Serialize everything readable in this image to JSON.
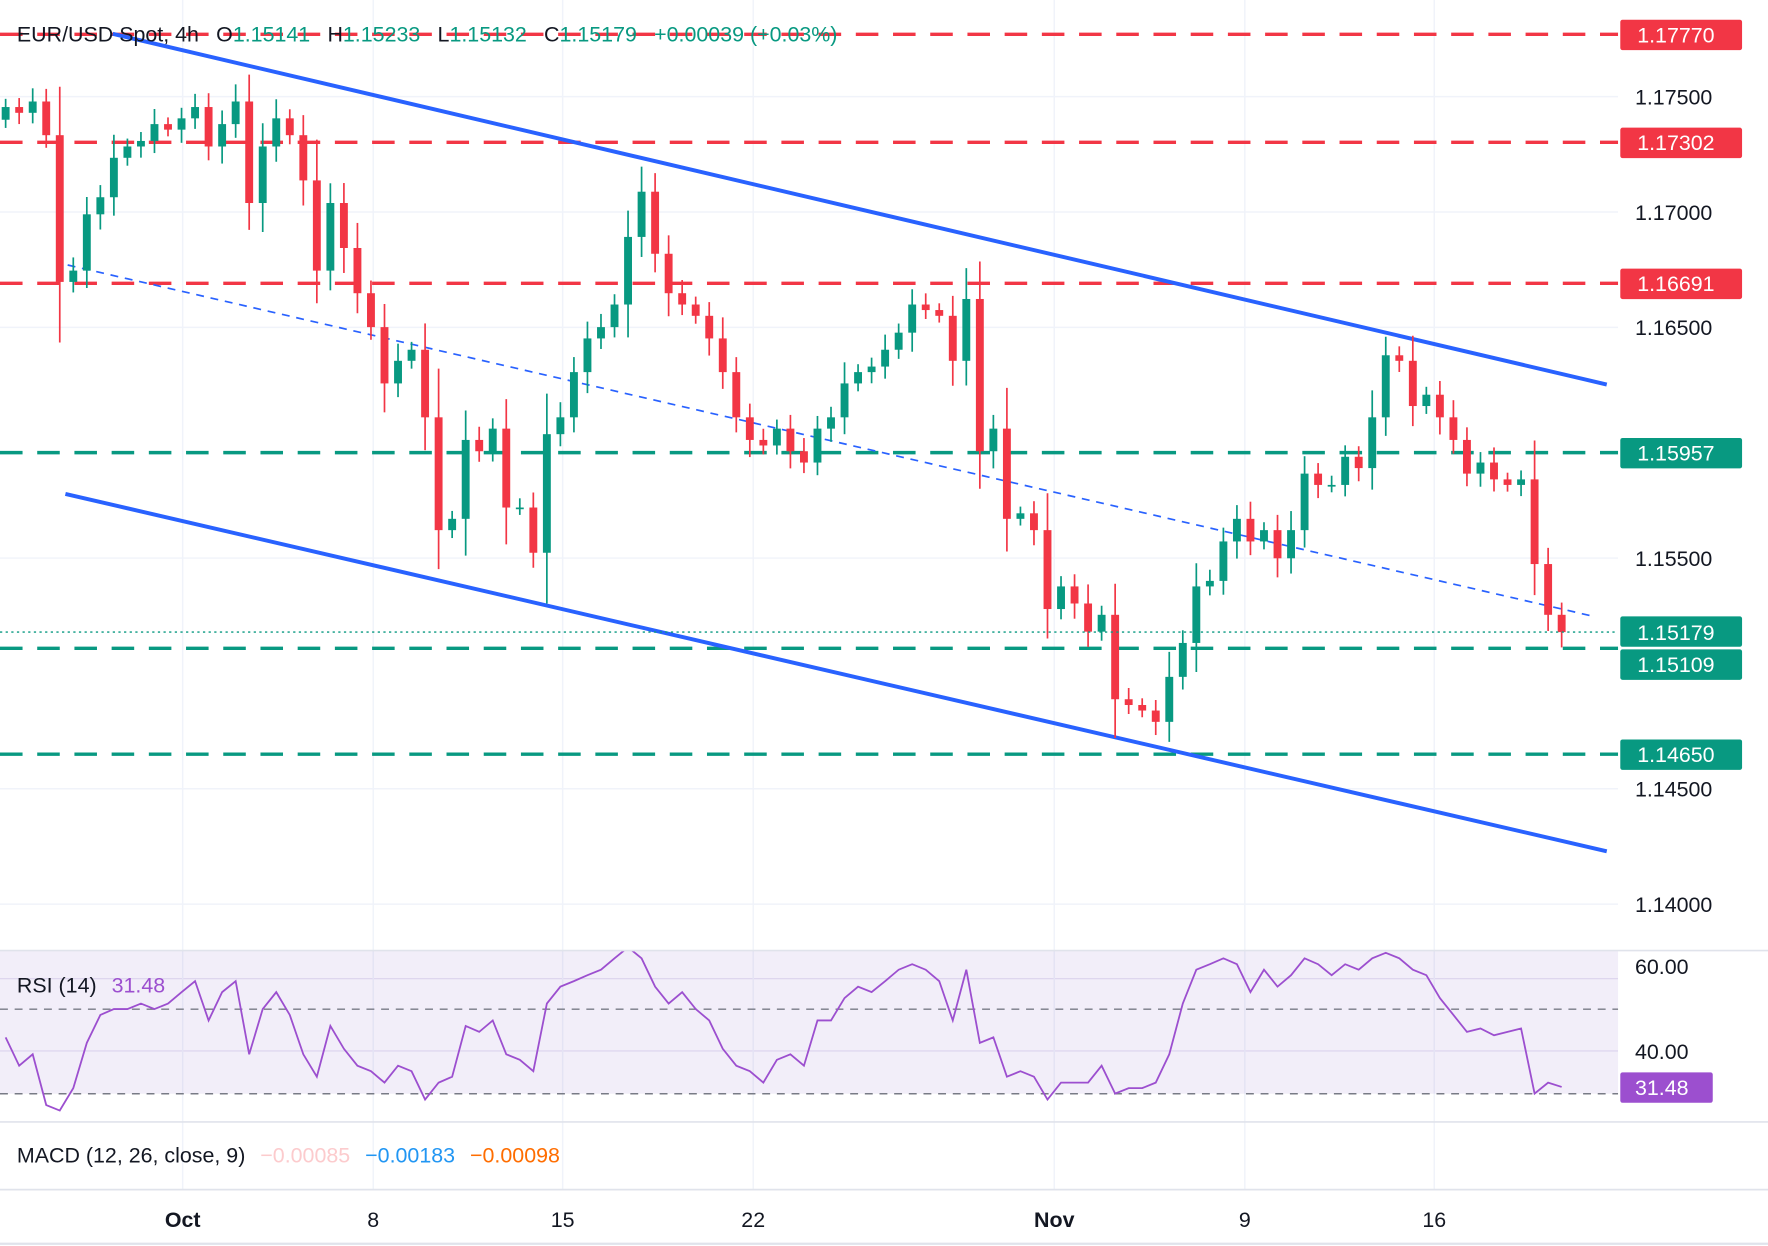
{
  "header": {
    "symbol": "EUR/USD Spot, 4h",
    "o_label": "O",
    "o_value": "1.15141",
    "h_label": "H",
    "h_value": "1.15233",
    "l_label": "L",
    "l_value": "1.15132",
    "c_label": "C",
    "c_value": "1.15179",
    "change": "+0.00039 (+0.03%)"
  },
  "colors": {
    "up": "#089981",
    "down": "#f23645",
    "trendline": "#2962ff",
    "rsi": "#9c4fcf",
    "macd_hist": "#fccbcd",
    "macd": "#2196f3",
    "signal": "#ff6d00"
  },
  "chart_data": [
    {
      "type": "candlestick",
      "title": "EUR/USD Spot, 4h",
      "ylim": [
        1.138,
        1.179
      ],
      "y_ticks": [
        "1.17500",
        "1.17000",
        "1.16500",
        "1.15500",
        "1.14500",
        "1.14000"
      ],
      "y_tick_values": [
        1.175,
        1.17,
        1.165,
        1.155,
        1.145,
        1.14
      ],
      "x_tick_labels": [
        "Oct",
        "8",
        "15",
        "22",
        "Nov",
        "9",
        "16"
      ],
      "grid": true,
      "first_open": 1.174,
      "closes": [
        1.17455,
        1.1743,
        1.17479,
        1.17333,
        1.16697,
        1.16746,
        1.1699,
        1.17064,
        1.17235,
        1.17284,
        1.17308,
        1.17381,
        1.17357,
        1.17406,
        1.17455,
        1.17284,
        1.17381,
        1.17479,
        1.17039,
        1.17284,
        1.17406,
        1.17333,
        1.17137,
        1.16746,
        1.17039,
        1.16844,
        1.16648,
        1.16501,
        1.16257,
        1.16355,
        1.16403,
        1.1611,
        1.15621,
        1.1567,
        1.16012,
        1.15963,
        1.16061,
        1.15719,
        1.15719,
        1.15523,
        1.16037,
        1.1611,
        1.16306,
        1.16452,
        1.16501,
        1.16599,
        1.16892,
        1.17088,
        1.16819,
        1.16648,
        1.16599,
        1.1655,
        1.16452,
        1.16306,
        1.1611,
        1.16012,
        1.15988,
        1.16061,
        1.15963,
        1.15914,
        1.16061,
        1.1611,
        1.16257,
        1.16306,
        1.1633,
        1.16403,
        1.16477,
        1.16599,
        1.16575,
        1.1655,
        1.16355,
        1.16623,
        1.15963,
        1.16061,
        1.1567,
        1.15694,
        1.15621,
        1.15279,
        1.15377,
        1.15303,
        1.15181,
        1.15254,
        1.14888,
        1.14863,
        1.14839,
        1.1479,
        1.14985,
        1.15132,
        1.15377,
        1.15401,
        1.15572,
        1.1567,
        1.15572,
        1.15621,
        1.15499,
        1.15621,
        1.15866,
        1.15817,
        1.15817,
        1.15939,
        1.1589,
        1.1611,
        1.16379,
        1.16355,
        1.16159,
        1.16208,
        1.1611,
        1.16012,
        1.15866,
        1.15914,
        1.15841,
        1.15817,
        1.15841,
        1.15474,
        1.15254,
        1.15179
      ],
      "levels": [
        {
          "value": "1.17770",
          "kind": "resistance",
          "color": "#f23645"
        },
        {
          "value": "1.17302",
          "kind": "resistance",
          "color": "#f23645"
        },
        {
          "value": "1.16691",
          "kind": "resistance",
          "color": "#f23645"
        },
        {
          "value": "1.15957",
          "kind": "support",
          "color": "#089981"
        },
        {
          "value": "1.15109",
          "kind": "support",
          "color": "#089981"
        },
        {
          "value": "1.14650",
          "kind": "support",
          "color": "#089981"
        }
      ],
      "last_price": "1.15179"
    },
    {
      "type": "line",
      "title": "RSI (14)",
      "last_value": "31.48",
      "y_ticks": [
        "60.00",
        "40.00"
      ],
      "y_tick_values": [
        60,
        40
      ],
      "bands": [
        50,
        30
      ],
      "values": [
        43.2,
        36.5,
        39.2,
        27.2,
        25.9,
        31.2,
        41.9,
        48.5,
        49.9,
        49.9,
        51.2,
        49.9,
        51.2,
        53.9,
        56.5,
        47.2,
        53.9,
        56.5,
        39.2,
        49.9,
        53.9,
        48.5,
        39.2,
        33.9,
        45.9,
        40.5,
        36.5,
        35.2,
        32.5,
        36.5,
        35.2,
        28.5,
        32.5,
        33.9,
        45.9,
        44.5,
        47.2,
        39.2,
        37.9,
        35.2,
        51.2,
        55.2,
        56.5,
        57.9,
        59.2,
        61.9,
        64.5,
        61.9,
        55.2,
        51.2,
        53.9,
        49.9,
        47.2,
        40.5,
        36.5,
        35.2,
        32.5,
        37.9,
        39.2,
        36.5,
        47.2,
        47.2,
        52.5,
        55.2,
        53.9,
        56.5,
        59.2,
        60.5,
        59.2,
        56.5,
        47.2,
        59.2,
        41.9,
        43.2,
        33.9,
        35.2,
        33.9,
        28.5,
        32.5,
        32.5,
        32.5,
        36.5,
        29.9,
        31.2,
        31.2,
        32.5,
        39.2,
        51.2,
        59.2,
        60.5,
        61.9,
        60.5,
        53.9,
        59.2,
        55.2,
        57.9,
        61.9,
        60.5,
        57.9,
        60.5,
        59.2,
        61.9,
        63.2,
        61.9,
        59.2,
        57.9,
        52.5,
        48.5,
        44.5,
        45.3,
        43.7,
        44.5,
        45.3,
        29.9,
        32.5,
        31.48
      ]
    },
    {
      "type": "indicator",
      "title": "MACD (12, 26, close, 9)",
      "histogram": "−0.00085",
      "macd": "−0.00183",
      "signal": "−0.00098"
    }
  ]
}
